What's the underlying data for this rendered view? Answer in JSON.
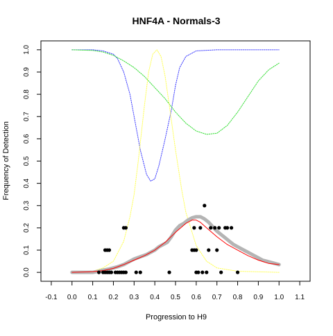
{
  "chart_data": {
    "type": "scatter",
    "title": "HNF4A - Normals-3",
    "xlabel": "Progression to H9",
    "ylabel": "Frequency of Detection",
    "xlim": [
      -0.15,
      1.15
    ],
    "ylim": [
      -0.04,
      1.04
    ],
    "xticks": [
      "-0.1",
      "0.0",
      "0.1",
      "0.2",
      "0.3",
      "0.4",
      "0.5",
      "0.6",
      "0.7",
      "0.8",
      "0.9",
      "1.0",
      "1.1"
    ],
    "yticks": [
      "0.0",
      "0.1",
      "0.2",
      "0.3",
      "0.4",
      "0.5",
      "0.6",
      "0.7",
      "0.8",
      "0.9",
      "1.0"
    ],
    "grid": false,
    "series": [
      {
        "style": "dotted-line",
        "color": "#4040ff",
        "x": [
          0.0,
          0.1,
          0.15,
          0.2,
          0.22,
          0.25,
          0.28,
          0.3,
          0.33,
          0.36,
          0.38,
          0.4,
          0.42,
          0.45,
          0.48,
          0.5,
          0.52,
          0.55,
          0.6,
          0.7,
          0.8,
          1.0
        ],
        "y": [
          1.0,
          1.0,
          0.995,
          0.98,
          0.96,
          0.9,
          0.8,
          0.7,
          0.55,
          0.44,
          0.41,
          0.42,
          0.48,
          0.6,
          0.73,
          0.84,
          0.92,
          0.97,
          0.995,
          1.0,
          1.0,
          1.0
        ]
      },
      {
        "style": "dotted-line",
        "color": "#33dd33",
        "x": [
          0.0,
          0.1,
          0.15,
          0.2,
          0.25,
          0.3,
          0.35,
          0.4,
          0.45,
          0.5,
          0.55,
          0.6,
          0.65,
          0.7,
          0.75,
          0.8,
          0.85,
          0.9,
          0.95,
          1.0
        ],
        "y": [
          1.0,
          0.997,
          0.99,
          0.975,
          0.95,
          0.92,
          0.88,
          0.83,
          0.78,
          0.72,
          0.67,
          0.635,
          0.62,
          0.625,
          0.66,
          0.72,
          0.79,
          0.86,
          0.91,
          0.94
        ]
      },
      {
        "style": "dotted-line",
        "color": "#ffff55",
        "x": [
          0.0,
          0.1,
          0.15,
          0.2,
          0.25,
          0.28,
          0.3,
          0.32,
          0.35,
          0.37,
          0.39,
          0.41,
          0.43,
          0.45,
          0.47,
          0.5,
          0.53,
          0.55,
          0.6,
          0.65,
          0.7,
          0.8,
          1.0
        ],
        "y": [
          0.0,
          0.005,
          0.02,
          0.05,
          0.14,
          0.25,
          0.35,
          0.5,
          0.75,
          0.9,
          0.98,
          1.0,
          0.97,
          0.88,
          0.75,
          0.55,
          0.37,
          0.27,
          0.12,
          0.05,
          0.02,
          0.005,
          0.0
        ]
      },
      {
        "style": "thick-line",
        "color": "#b4b4b4",
        "x": [
          0.0,
          0.1,
          0.13,
          0.15,
          0.18,
          0.2,
          0.22,
          0.25,
          0.28,
          0.3,
          0.33,
          0.36,
          0.38,
          0.4,
          0.42,
          0.44,
          0.46,
          0.48,
          0.5,
          0.52,
          0.54,
          0.56,
          0.58,
          0.6,
          0.62,
          0.64,
          0.66,
          0.68,
          0.7,
          0.72,
          0.74,
          0.76,
          0.78,
          0.8,
          0.82,
          0.84,
          0.86,
          0.88,
          0.9,
          0.92,
          0.94,
          0.96,
          0.98,
          1.0
        ],
        "y": [
          0.0,
          0.0,
          0.005,
          0.01,
          0.015,
          0.02,
          0.025,
          0.035,
          0.05,
          0.06,
          0.07,
          0.08,
          0.09,
          0.1,
          0.115,
          0.125,
          0.135,
          0.16,
          0.19,
          0.21,
          0.22,
          0.235,
          0.245,
          0.25,
          0.25,
          0.24,
          0.225,
          0.205,
          0.185,
          0.17,
          0.155,
          0.14,
          0.125,
          0.115,
          0.105,
          0.095,
          0.085,
          0.075,
          0.065,
          0.055,
          0.05,
          0.045,
          0.04,
          0.035
        ]
      },
      {
        "style": "line",
        "color": "#ff0000",
        "x": [
          0.0,
          0.1,
          0.15,
          0.2,
          0.25,
          0.3,
          0.35,
          0.4,
          0.45,
          0.5,
          0.55,
          0.58,
          0.6,
          0.62,
          0.65,
          0.7,
          0.75,
          0.8,
          0.85,
          0.9,
          0.95,
          1.0
        ],
        "y": [
          0.0,
          0.003,
          0.008,
          0.018,
          0.035,
          0.055,
          0.075,
          0.1,
          0.135,
          0.18,
          0.22,
          0.235,
          0.235,
          0.225,
          0.2,
          0.16,
          0.125,
          0.1,
          0.075,
          0.055,
          0.04,
          0.035
        ]
      },
      {
        "style": "points",
        "color": "#000000",
        "x": [
          0.13,
          0.15,
          0.16,
          0.17,
          0.18,
          0.19,
          0.21,
          0.22,
          0.23,
          0.24,
          0.25,
          0.26,
          0.31,
          0.33,
          0.47,
          0.6,
          0.61,
          0.63,
          0.65,
          0.72,
          0.8,
          0.16,
          0.17,
          0.18,
          0.58,
          0.59,
          0.6,
          0.66,
          0.7,
          0.25,
          0.26,
          0.59,
          0.62,
          0.67,
          0.69,
          0.71,
          0.74,
          0.75,
          0.77,
          0.64
        ],
        "y": [
          0.0,
          0.0,
          0.0,
          0.0,
          0.0,
          0.0,
          0.0,
          0.0,
          0.0,
          0.0,
          0.0,
          0.0,
          0.0,
          0.0,
          0.0,
          0.0,
          0.0,
          0.0,
          0.0,
          0.0,
          0.0,
          0.1,
          0.1,
          0.1,
          0.1,
          0.1,
          0.1,
          0.1,
          0.1,
          0.2,
          0.2,
          0.2,
          0.2,
          0.2,
          0.2,
          0.2,
          0.2,
          0.2,
          0.2,
          0.3
        ]
      }
    ]
  }
}
